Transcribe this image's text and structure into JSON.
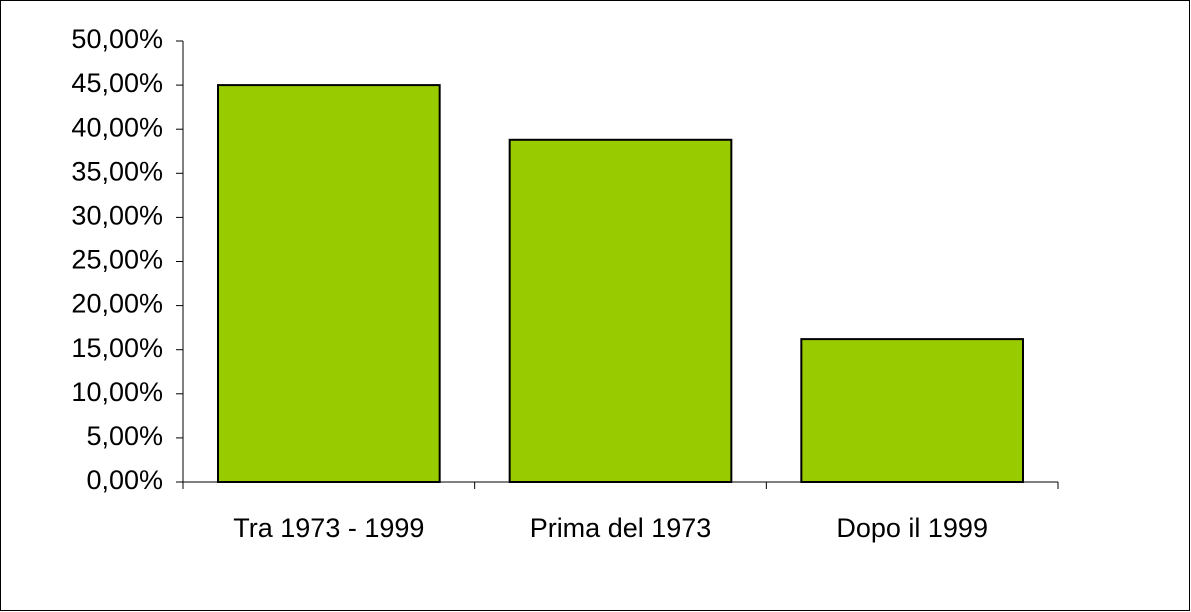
{
  "chart_data": {
    "type": "bar",
    "categories": [
      "Tra 1973 - 1999",
      "Prima del 1973",
      "Dopo il 1999"
    ],
    "values": [
      45.0,
      38.8,
      16.2
    ],
    "color": "#99cc00",
    "ylim": [
      0,
      50
    ],
    "yticks": [
      {
        "value": 0,
        "label": "0,00%"
      },
      {
        "value": 5,
        "label": "5,00%"
      },
      {
        "value": 10,
        "label": "10,00%"
      },
      {
        "value": 15,
        "label": "15,00%"
      },
      {
        "value": 20,
        "label": "20,00%"
      },
      {
        "value": 25,
        "label": "25,00%"
      },
      {
        "value": 30,
        "label": "30,00%"
      },
      {
        "value": 35,
        "label": "35,00%"
      },
      {
        "value": 40,
        "label": "40,00%"
      },
      {
        "value": 45,
        "label": "45,00%"
      },
      {
        "value": 50,
        "label": "50,00%"
      }
    ],
    "grid": false
  }
}
